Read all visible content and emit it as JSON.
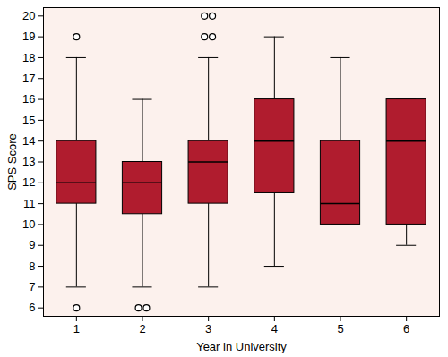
{
  "chart_data": {
    "type": "box",
    "x_label": "Year in University",
    "y_label": "SPS Score",
    "x": [
      1,
      2,
      3,
      4,
      5,
      6
    ],
    "min": [
      7,
      7,
      7,
      8,
      10,
      9
    ],
    "q1": [
      11,
      10.5,
      11,
      11.5,
      10,
      10
    ],
    "median": [
      12,
      12,
      13,
      14,
      11,
      14
    ],
    "q3": [
      14,
      13,
      14,
      16,
      14,
      16
    ],
    "max": [
      18,
      16,
      18,
      19,
      18,
      16
    ],
    "outliers": [
      [
        19,
        6
      ],
      [
        6,
        6
      ],
      [
        20,
        20,
        19,
        19
      ],
      [],
      [],
      []
    ],
    "color": "#b01c2e",
    "xlim": [
      0.5,
      6.5
    ],
    "xticks": [
      1,
      2,
      3,
      4,
      5,
      6
    ],
    "ylim": [
      5.6,
      20.4
    ],
    "yticks": [
      6,
      7,
      8,
      9,
      10,
      11,
      12,
      13,
      14,
      15,
      16,
      17,
      18,
      19,
      20
    ],
    "grid": false
  }
}
